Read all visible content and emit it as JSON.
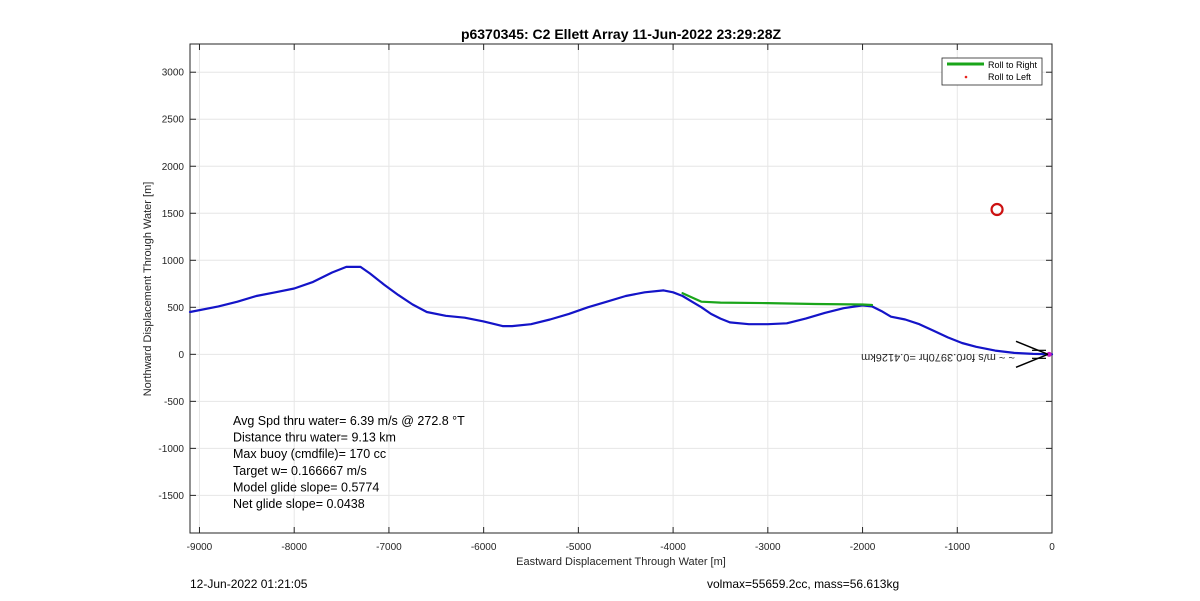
{
  "chart_data": {
    "type": "line",
    "title": "p6370345: C2 Ellett Array 11-Jun-2022 23:29:28Z",
    "xlabel": "Eastward Displacement Through Water [m]",
    "ylabel": "Northward Displacement Through Water [m]",
    "xlim": [
      -9100,
      0
    ],
    "ylim": [
      -1900,
      3300
    ],
    "xticks": [
      -9000,
      -8000,
      -7000,
      -6000,
      -5000,
      -4000,
      -3000,
      -2000,
      -1000,
      0
    ],
    "yticks": [
      -1500,
      -1000,
      -500,
      0,
      500,
      1000,
      1500,
      2000,
      2500,
      3000
    ],
    "grid": true,
    "legend_position": "top-right",
    "series": [
      {
        "name": "Roll to Right",
        "color": "#1aa51a",
        "x": [
          -3900,
          -3700,
          -3500,
          -3000,
          -2500,
          -2000,
          -1900
        ],
        "y": [
          650,
          560,
          550,
          545,
          535,
          530,
          525
        ]
      },
      {
        "name": "Roll to Left",
        "color": "#e8231c",
        "x": [],
        "y": []
      },
      {
        "color": "#1414c8",
        "x": [
          -9100,
          -8800,
          -8600,
          -8400,
          -8200,
          -8000,
          -7800,
          -7600,
          -7450,
          -7300,
          -7200,
          -7050,
          -6900,
          -6750,
          -6600,
          -6400,
          -6200,
          -6000,
          -5800,
          -5700,
          -5500,
          -5300,
          -5100,
          -4900,
          -4700,
          -4500,
          -4300,
          -4100,
          -4000,
          -3900,
          -3800,
          -3700,
          -3600,
          -3500,
          -3400,
          -3200,
          -3000,
          -2800,
          -2600,
          -2400,
          -2200,
          -2000,
          -1900,
          -1800,
          -1700,
          -1550,
          -1400,
          -1250,
          -1100,
          -950,
          -800,
          -600,
          -400,
          -200,
          0
        ],
        "y": [
          450,
          510,
          560,
          620,
          660,
          700,
          770,
          870,
          930,
          930,
          860,
          740,
          630,
          530,
          450,
          410,
          390,
          350,
          300,
          300,
          320,
          370,
          430,
          500,
          560,
          620,
          660,
          680,
          660,
          620,
          560,
          500,
          430,
          380,
          340,
          320,
          320,
          330,
          380,
          440,
          490,
          520,
          510,
          460,
          400,
          370,
          320,
          250,
          180,
          120,
          80,
          40,
          15,
          5,
          0
        ]
      }
    ],
    "markers": [
      {
        "type": "circle",
        "color": "#cc1111",
        "x": -580,
        "y": 1540
      },
      {
        "type": "point",
        "color": "#c814c8",
        "x": -30,
        "y": 0
      }
    ],
    "annotation_text": "~ ~ m/s for0.3970hr =0.4126km",
    "stats": [
      "Avg Spd thru water=  6.39 m/s @ 272.8 °T",
      "Distance thru water=  9.13 km",
      "Max buoy (cmdfile)= 170 cc",
      "Target w= 0.166667 m/s",
      "Model glide slope= 0.5774",
      "Net glide slope= 0.0438"
    ]
  },
  "footer": {
    "timestamp": "12-Jun-2022 01:21:05",
    "mass_info": "volmax=55659.2cc, mass=56.613kg"
  }
}
